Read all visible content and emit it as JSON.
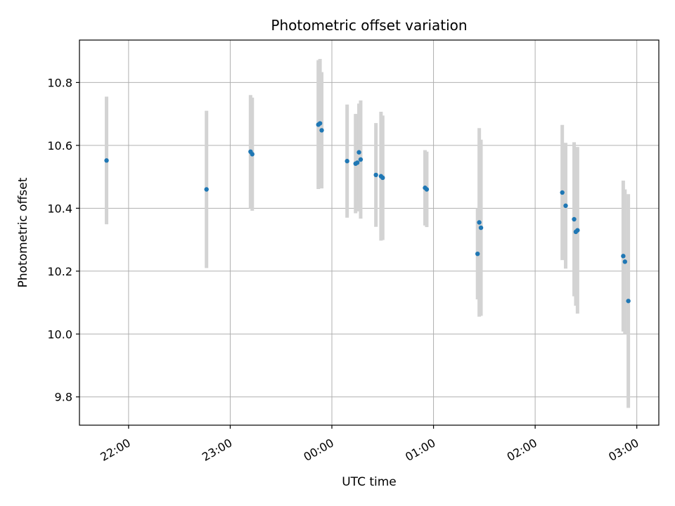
{
  "chart_data": {
    "type": "scatter",
    "title": "Photometric offset variation",
    "xlabel": "UTC time",
    "ylabel": "Photometric offset",
    "x_unit": "UTC",
    "xlim": [
      "21:31",
      "03:13"
    ],
    "ylim": [
      9.71,
      10.935
    ],
    "x_ticks": [
      {
        "time": "22:00",
        "label": "22:00"
      },
      {
        "time": "23:00",
        "label": "23:00"
      },
      {
        "time": "00:00",
        "label": "00:00"
      },
      {
        "time": "01:00",
        "label": "01:00"
      },
      {
        "time": "02:00",
        "label": "02:00"
      },
      {
        "time": "03:00",
        "label": "03:00"
      }
    ],
    "y_ticks": [
      {
        "value": 9.8,
        "label": "9.8"
      },
      {
        "value": 10.0,
        "label": "10.0"
      },
      {
        "value": 10.2,
        "label": "10.2"
      },
      {
        "value": 10.4,
        "label": "10.4"
      },
      {
        "value": 10.6,
        "label": "10.6"
      },
      {
        "value": 10.8,
        "label": "10.8"
      }
    ],
    "grid": true,
    "colors": {
      "point": "#1f77b4",
      "errorbar": "#d3d3d3",
      "grid": "#b0b0b0"
    },
    "points": [
      {
        "time": "21:47",
        "y": 10.552,
        "yerr": 0.203
      },
      {
        "time": "22:46",
        "y": 10.46,
        "yerr": 0.25
      },
      {
        "time": "23:12",
        "y": 10.58,
        "yerr": 0.18
      },
      {
        "time": "23:13",
        "y": 10.572,
        "yerr": 0.18
      },
      {
        "time": "23:52",
        "y": 10.666,
        "yerr": 0.205
      },
      {
        "time": "23:53",
        "y": 10.67,
        "yerr": 0.205
      },
      {
        "time": "23:54",
        "y": 10.648,
        "yerr": 0.185
      },
      {
        "time": "00:09",
        "y": 10.55,
        "yerr": 0.18
      },
      {
        "time": "00:14",
        "y": 10.542,
        "yerr": 0.158
      },
      {
        "time": "00:15",
        "y": 10.545,
        "yerr": 0.155
      },
      {
        "time": "00:16",
        "y": 10.578,
        "yerr": 0.155
      },
      {
        "time": "00:17",
        "y": 10.555,
        "yerr": 0.188
      },
      {
        "time": "00:26",
        "y": 10.506,
        "yerr": 0.165
      },
      {
        "time": "00:29",
        "y": 10.502,
        "yerr": 0.205
      },
      {
        "time": "00:30",
        "y": 10.497,
        "yerr": 0.198
      },
      {
        "time": "00:55",
        "y": 10.465,
        "yerr": 0.12
      },
      {
        "time": "00:56",
        "y": 10.46,
        "yerr": 0.12
      },
      {
        "time": "01:26",
        "y": 10.255,
        "yerr": 0.145
      },
      {
        "time": "01:27",
        "y": 10.355,
        "yerr": 0.3
      },
      {
        "time": "01:28",
        "y": 10.338,
        "yerr": 0.28
      },
      {
        "time": "02:16",
        "y": 10.45,
        "yerr": 0.215
      },
      {
        "time": "02:18",
        "y": 10.408,
        "yerr": 0.2
      },
      {
        "time": "02:23",
        "y": 10.365,
        "yerr": 0.245
      },
      {
        "time": "02:24",
        "y": 10.325,
        "yerr": 0.235
      },
      {
        "time": "02:25",
        "y": 10.33,
        "yerr": 0.265
      },
      {
        "time": "02:52",
        "y": 10.248,
        "yerr": 0.24
      },
      {
        "time": "02:53",
        "y": 10.23,
        "yerr": 0.23
      },
      {
        "time": "02:55",
        "y": 10.105,
        "yerr": 0.34
      }
    ]
  }
}
